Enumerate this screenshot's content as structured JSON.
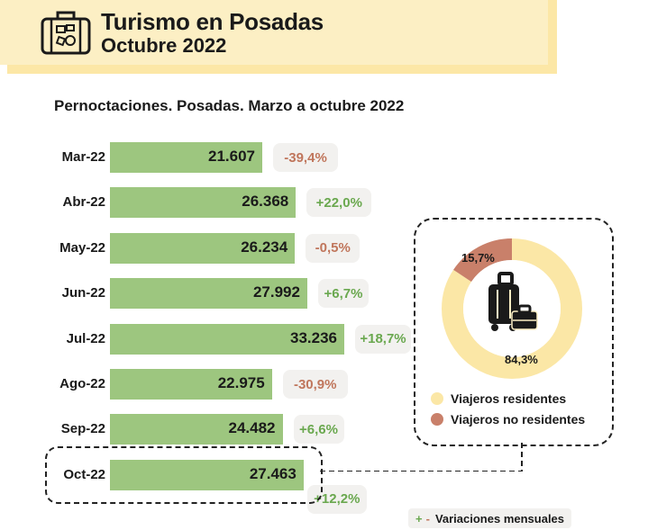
{
  "header": {
    "title": "Turismo en Posadas",
    "subtitle": "Octubre 2022"
  },
  "chart_title": "Pernoctaciones. Posadas. Marzo a octubre 2022",
  "colors": {
    "bar": "#9dc67f",
    "positive": "#6aa84f",
    "negative": "#c0765c",
    "residentes": "#fbe7a6",
    "no_residentes": "#c9806a"
  },
  "chart_data": [
    {
      "type": "bar",
      "orientation": "horizontal",
      "title": "Pernoctaciones. Posadas. Marzo a octubre 2022",
      "categories": [
        "Mar-22",
        "Abr-22",
        "May-22",
        "Jun-22",
        "Jul-22",
        "Ago-22",
        "Sep-22",
        "Oct-22"
      ],
      "values": [
        21607,
        26368,
        26234,
        27992,
        33236,
        22975,
        24482,
        27463
      ],
      "value_labels": [
        "21.607",
        "26.368",
        "26.234",
        "27.992",
        "33.236",
        "22.975",
        "24.482",
        "27.463"
      ],
      "variations": [
        "-39,4%",
        "+22,0%",
        "-0,5%",
        "+6,7%",
        "+18,7%",
        "-30,9%",
        "+6,6%",
        "+12,2%"
      ],
      "variations_label": "Variaciones mensuales",
      "grid": false
    },
    {
      "type": "pie",
      "style": "donut",
      "labels": [
        "Viajeros residentes",
        "Viajeros no residentes"
      ],
      "values": [
        84.3,
        15.7
      ],
      "value_labels": [
        "84,3%",
        "15,7%"
      ],
      "legend": "bottom"
    }
  ]
}
